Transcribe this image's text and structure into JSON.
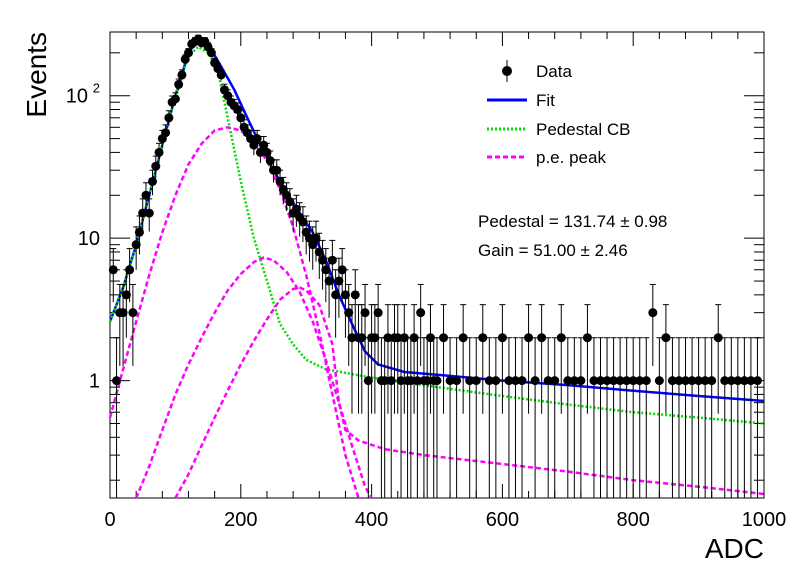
{
  "chart_data": {
    "type": "scatter",
    "xlabel": "ADC",
    "ylabel": "Events",
    "xlim": [
      0,
      1000
    ],
    "ylim": [
      0.15,
      280
    ],
    "yscale": "log",
    "x_ticks": [
      0,
      200,
      400,
      600,
      800,
      1000
    ],
    "y_ticks": [
      {
        "value": 1,
        "label": "1"
      },
      {
        "value": 10,
        "label": "10"
      },
      {
        "value": 100,
        "label": "10",
        "sup": "2"
      }
    ],
    "legend_position": "top-right",
    "legend": [
      {
        "label": "Data",
        "kind": "marker",
        "color": "#000000"
      },
      {
        "label": "Fit",
        "kind": "line",
        "color": "#0000ff"
      },
      {
        "label": "Pedestal CB",
        "kind": "dotted",
        "color": "#00dd00"
      },
      {
        "label": "p.e. peak",
        "kind": "dashed",
        "color": "#ff00ff"
      }
    ],
    "annotations": [
      "Pedestal = 131.74 ± 0.98",
      "Gain = 51.00 ± 2.46"
    ],
    "series": [
      {
        "name": "Data",
        "color": "#000000",
        "points": [
          [
            5,
            6
          ],
          [
            10,
            1
          ],
          [
            15,
            3
          ],
          [
            20,
            3
          ],
          [
            25,
            4
          ],
          [
            30,
            6
          ],
          [
            35,
            3
          ],
          [
            40,
            9
          ],
          [
            45,
            11
          ],
          [
            50,
            15
          ],
          [
            55,
            20
          ],
          [
            60,
            15
          ],
          [
            65,
            25
          ],
          [
            70,
            32
          ],
          [
            75,
            40
          ],
          [
            80,
            50
          ],
          [
            85,
            55
          ],
          [
            90,
            70
          ],
          [
            95,
            90
          ],
          [
            100,
            95
          ],
          [
            105,
            120
          ],
          [
            110,
            140
          ],
          [
            115,
            180
          ],
          [
            120,
            200
          ],
          [
            125,
            230
          ],
          [
            130,
            240
          ],
          [
            135,
            250
          ],
          [
            140,
            235
          ],
          [
            145,
            240
          ],
          [
            150,
            220
          ],
          [
            155,
            200
          ],
          [
            160,
            170
          ],
          [
            165,
            155
          ],
          [
            170,
            140
          ],
          [
            175,
            110
          ],
          [
            180,
            100
          ],
          [
            185,
            90
          ],
          [
            190,
            85
          ],
          [
            195,
            80
          ],
          [
            200,
            70
          ],
          [
            205,
            60
          ],
          [
            210,
            55
          ],
          [
            215,
            50
          ],
          [
            220,
            45
          ],
          [
            225,
            50
          ],
          [
            230,
            40
          ],
          [
            235,
            45
          ],
          [
            240,
            40
          ],
          [
            245,
            35
          ],
          [
            250,
            30
          ],
          [
            255,
            30
          ],
          [
            260,
            25
          ],
          [
            265,
            22
          ],
          [
            270,
            20
          ],
          [
            275,
            18
          ],
          [
            280,
            15
          ],
          [
            285,
            16
          ],
          [
            290,
            14
          ],
          [
            295,
            13
          ],
          [
            300,
            11
          ],
          [
            305,
            10
          ],
          [
            310,
            9
          ],
          [
            315,
            10
          ],
          [
            320,
            8
          ],
          [
            325,
            7
          ],
          [
            330,
            6
          ],
          [
            335,
            5
          ],
          [
            340,
            7
          ],
          [
            345,
            4
          ],
          [
            350,
            5
          ],
          [
            355,
            6
          ],
          [
            360,
            4
          ],
          [
            365,
            3
          ],
          [
            370,
            2
          ],
          [
            375,
            4
          ],
          [
            380,
            2
          ],
          [
            385,
            2
          ],
          [
            390,
            3
          ],
          [
            395,
            1
          ],
          [
            400,
            2
          ],
          [
            405,
            2
          ],
          [
            410,
            3
          ],
          [
            415,
            1
          ],
          [
            420,
            1
          ],
          [
            425,
            2
          ],
          [
            430,
            1
          ],
          [
            435,
            2
          ],
          [
            440,
            2
          ],
          [
            445,
            1
          ],
          [
            450,
            2
          ],
          [
            455,
            1
          ],
          [
            460,
            1
          ],
          [
            465,
            2
          ],
          [
            470,
            1
          ],
          [
            475,
            3
          ],
          [
            480,
            1
          ],
          [
            485,
            1
          ],
          [
            490,
            2
          ],
          [
            495,
            1
          ],
          [
            500,
            1
          ],
          [
            510,
            2
          ],
          [
            520,
            1
          ],
          [
            530,
            1
          ],
          [
            540,
            2
          ],
          [
            550,
            1
          ],
          [
            560,
            1
          ],
          [
            570,
            2
          ],
          [
            580,
            1
          ],
          [
            590,
            1
          ],
          [
            600,
            2
          ],
          [
            610,
            1
          ],
          [
            620,
            1
          ],
          [
            630,
            1
          ],
          [
            640,
            2
          ],
          [
            650,
            1
          ],
          [
            660,
            2
          ],
          [
            670,
            1
          ],
          [
            680,
            1
          ],
          [
            690,
            2
          ],
          [
            700,
            1
          ],
          [
            710,
            1
          ],
          [
            720,
            1
          ],
          [
            730,
            2
          ],
          [
            740,
            1
          ],
          [
            750,
            1
          ],
          [
            760,
            1
          ],
          [
            770,
            1
          ],
          [
            780,
            1
          ],
          [
            790,
            1
          ],
          [
            800,
            1
          ],
          [
            810,
            1
          ],
          [
            820,
            1
          ],
          [
            830,
            3
          ],
          [
            840,
            1
          ],
          [
            850,
            2
          ],
          [
            860,
            1
          ],
          [
            870,
            1
          ],
          [
            880,
            1
          ],
          [
            890,
            1
          ],
          [
            900,
            1
          ],
          [
            910,
            1
          ],
          [
            920,
            1
          ],
          [
            930,
            2
          ],
          [
            940,
            1
          ],
          [
            950,
            1
          ],
          [
            960,
            1
          ],
          [
            970,
            1
          ],
          [
            980,
            1
          ],
          [
            990,
            1
          ]
        ]
      },
      {
        "name": "Fit",
        "color": "#0000ff",
        "points": [
          [
            0,
            2.6
          ],
          [
            20,
            4.5
          ],
          [
            40,
            9
          ],
          [
            60,
            20
          ],
          [
            80,
            45
          ],
          [
            100,
            100
          ],
          [
            120,
            200
          ],
          [
            135,
            250
          ],
          [
            150,
            230
          ],
          [
            170,
            160
          ],
          [
            190,
            110
          ],
          [
            210,
            70
          ],
          [
            230,
            45
          ],
          [
            250,
            30
          ],
          [
            270,
            21
          ],
          [
            290,
            15
          ],
          [
            310,
            11
          ],
          [
            330,
            7
          ],
          [
            350,
            4
          ],
          [
            370,
            2.5
          ],
          [
            390,
            1.6
          ],
          [
            410,
            1.3
          ],
          [
            450,
            1.15
          ],
          [
            500,
            1.1
          ],
          [
            600,
            1.0
          ],
          [
            700,
            0.93
          ],
          [
            800,
            0.85
          ],
          [
            900,
            0.78
          ],
          [
            1000,
            0.72
          ]
        ]
      },
      {
        "name": "Pedestal CB",
        "color": "#00dd00",
        "points": [
          [
            0,
            2.6
          ],
          [
            20,
            4.5
          ],
          [
            40,
            9
          ],
          [
            60,
            20
          ],
          [
            80,
            45
          ],
          [
            100,
            100
          ],
          [
            120,
            190
          ],
          [
            135,
            220
          ],
          [
            150,
            200
          ],
          [
            165,
            150
          ],
          [
            180,
            70
          ],
          [
            200,
            25
          ],
          [
            220,
            10
          ],
          [
            240,
            5
          ],
          [
            260,
            2.5
          ],
          [
            280,
            1.8
          ],
          [
            300,
            1.4
          ],
          [
            330,
            1.2
          ],
          [
            400,
            1.05
          ],
          [
            500,
            0.9
          ],
          [
            600,
            0.78
          ],
          [
            700,
            0.68
          ],
          [
            800,
            0.6
          ],
          [
            900,
            0.55
          ],
          [
            1000,
            0.5
          ]
        ]
      },
      {
        "name": "p.e. peak",
        "color": "#ff00ff",
        "points": [
          [
            0,
            0.55
          ],
          [
            20,
            1.2
          ],
          [
            40,
            2.6
          ],
          [
            60,
            5.5
          ],
          [
            80,
            11
          ],
          [
            100,
            20
          ],
          [
            120,
            33
          ],
          [
            140,
            46
          ],
          [
            160,
            57
          ],
          [
            180,
            60
          ],
          [
            200,
            57
          ],
          [
            220,
            47
          ],
          [
            240,
            35
          ],
          [
            260,
            22
          ],
          [
            280,
            12
          ],
          [
            300,
            5.5
          ],
          [
            320,
            2.2
          ],
          [
            340,
            0.8
          ],
          [
            360,
            0.3
          ],
          [
            380,
            0.15
          ]
        ]
      },
      {
        "name": "p.e. peak",
        "color": "#ff00ff",
        "points": [
          [
            40,
            0.15
          ],
          [
            60,
            0.25
          ],
          [
            80,
            0.45
          ],
          [
            100,
            0.8
          ],
          [
            120,
            1.3
          ],
          [
            140,
            2.0
          ],
          [
            160,
            3.0
          ],
          [
            180,
            4.3
          ],
          [
            200,
            5.6
          ],
          [
            220,
            6.8
          ],
          [
            235,
            7.3
          ],
          [
            250,
            7.0
          ],
          [
            270,
            5.8
          ],
          [
            290,
            4.2
          ],
          [
            310,
            2.6
          ],
          [
            330,
            1.4
          ],
          [
            350,
            0.7
          ],
          [
            370,
            0.35
          ],
          [
            390,
            0.18
          ],
          [
            400,
            0.15
          ]
        ]
      },
      {
        "name": "p.e. peak",
        "color": "#ff00ff",
        "points": [
          [
            100,
            0.15
          ],
          [
            120,
            0.22
          ],
          [
            140,
            0.35
          ],
          [
            160,
            0.55
          ],
          [
            180,
            0.85
          ],
          [
            200,
            1.3
          ],
          [
            220,
            1.9
          ],
          [
            240,
            2.7
          ],
          [
            260,
            3.7
          ],
          [
            280,
            4.4
          ],
          [
            290,
            4.5
          ],
          [
            300,
            4.3
          ],
          [
            320,
            3.4
          ],
          [
            340,
            1.8
          ],
          [
            350,
            0.7
          ],
          [
            360,
            0.45
          ],
          [
            380,
            0.38
          ],
          [
            420,
            0.33
          ],
          [
            480,
            0.3
          ],
          [
            600,
            0.26
          ],
          [
            700,
            0.23
          ],
          [
            800,
            0.2
          ],
          [
            900,
            0.18
          ],
          [
            1000,
            0.16
          ]
        ]
      }
    ]
  }
}
